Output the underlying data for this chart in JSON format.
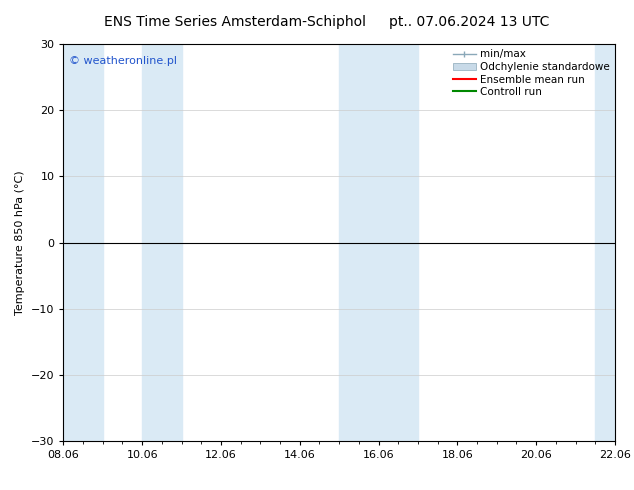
{
  "title_left": "ENS Time Series Amsterdam-Schiphol",
  "title_right": "pt.. 07.06.2024 13 UTC",
  "ylabel": "Temperature 850 hPa (°C)",
  "ylim": [
    -30,
    30
  ],
  "yticks": [
    -30,
    -20,
    -10,
    0,
    10,
    20,
    30
  ],
  "xlim": [
    0,
    14
  ],
  "xtick_labels": [
    "08.06",
    "10.06",
    "12.06",
    "14.06",
    "16.06",
    "18.06",
    "20.06",
    "22.06"
  ],
  "xtick_positions": [
    0,
    2,
    4,
    6,
    8,
    10,
    12,
    14
  ],
  "watermark": "© weatheronline.pl",
  "watermark_color": "#2255cc",
  "bg_color": "#ffffff",
  "plot_bg_color": "#ffffff",
  "shaded_bands": [
    {
      "x_start": 0.0,
      "x_end": 1.0
    },
    {
      "x_start": 2.0,
      "x_end": 3.0
    },
    {
      "x_start": 7.0,
      "x_end": 9.0
    },
    {
      "x_start": 13.5,
      "x_end": 14.0
    }
  ],
  "shade_color": "#daeaf5",
  "zero_line_color": "#000000",
  "legend_items": [
    {
      "label": "min/max",
      "style": "minmax"
    },
    {
      "label": "Odchylenie standardowe",
      "style": "stddev"
    },
    {
      "label": "Ensemble mean run",
      "color": "#ff0000",
      "style": "line"
    },
    {
      "label": "Controll run",
      "color": "#008800",
      "style": "line"
    }
  ],
  "grid_color": "#cccccc",
  "font_size_title": 10,
  "font_size_labels": 8,
  "font_size_legend": 7.5,
  "minmax_color": "#8aa8b8",
  "stddev_color": "#c8dae8"
}
